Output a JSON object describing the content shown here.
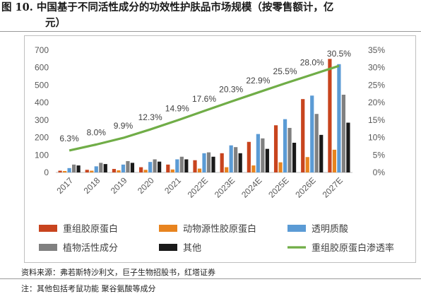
{
  "figure": {
    "title_line1": "图 10. 中国基于不同活性成分的功效性护肤品市场规模（按零售额计，亿",
    "title_line2": "元）",
    "source": "资料来源：弗若斯特沙利文，巨子生物招股书，红塔证券",
    "note": "注：其他包括考鼠功能 聚谷氨酸等成分"
  },
  "chart_data": {
    "type": "bar",
    "categories": [
      "2017",
      "2018",
      "2019",
      "2020",
      "2021",
      "2022E",
      "2023E",
      "2024E",
      "2025E",
      "2026E",
      "2027E"
    ],
    "ylim": [
      0,
      700
    ],
    "yticks": [
      0,
      100,
      200,
      300,
      400,
      500,
      600,
      700
    ],
    "y2lim": [
      0,
      35
    ],
    "y2ticks": [
      "0%",
      "5%",
      "10%",
      "15%",
      "20%",
      "25%",
      "30%",
      "35%"
    ],
    "y2tick_values": [
      0,
      5,
      10,
      15,
      20,
      25,
      30,
      35
    ],
    "series": [
      {
        "name": "重组胶原蛋白",
        "color": "#c8441e",
        "values": [
          10,
          15,
          20,
          30,
          45,
          70,
          110,
          175,
          270,
          420,
          650
        ]
      },
      {
        "name": "动物源性胶原蛋白",
        "color": "#e8841f",
        "values": [
          8,
          10,
          12,
          15,
          17,
          22,
          30,
          40,
          58,
          88,
          130
        ]
      },
      {
        "name": "透明质酸",
        "color": "#5b9bd5",
        "values": [
          25,
          35,
          45,
          60,
          75,
          110,
          155,
          220,
          305,
          440,
          620
        ]
      },
      {
        "name": "植物活性成分",
        "color": "#808080",
        "values": [
          45,
          55,
          65,
          75,
          90,
          115,
          145,
          195,
          255,
          335,
          445
        ]
      },
      {
        "name": "其他",
        "color": "#1a1a1a",
        "values": [
          40,
          48,
          55,
          62,
          75,
          90,
          110,
          135,
          170,
          215,
          285
        ]
      }
    ],
    "line_series": {
      "name": "重组胶原蛋白渗透率",
      "color": "#70ad47",
      "values": [
        6.3,
        8.0,
        9.9,
        12.3,
        14.9,
        17.6,
        20.3,
        22.9,
        25.5,
        28.0,
        30.5
      ],
      "labels": [
        "6.3%",
        "8.0%",
        "9.9%",
        "12.3%",
        "14.9%",
        "17.6%",
        "20.3%",
        "22.9%",
        "25.5%",
        "28.0%",
        "30.5%"
      ]
    },
    "legend_position": "bottom"
  }
}
